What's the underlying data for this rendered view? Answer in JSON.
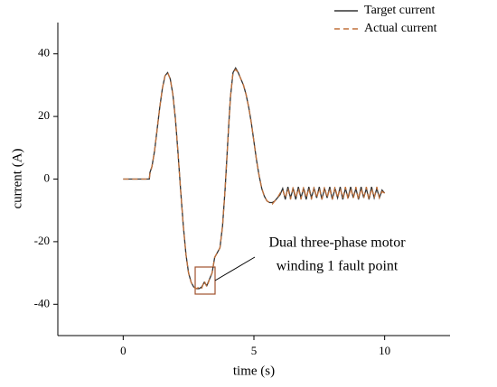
{
  "chart_data": {
    "type": "line",
    "xlabel": "time (s)",
    "ylabel": "current (A)",
    "x": [
      0,
      0.5,
      1,
      1.02,
      1.1,
      1.2,
      1.3,
      1.4,
      1.5,
      1.6,
      1.7,
      1.8,
      1.9,
      2.0,
      2.1,
      2.2,
      2.3,
      2.4,
      2.5,
      2.6,
      2.7,
      2.8,
      2.9,
      3.0,
      3.1,
      3.2,
      3.3,
      3.4,
      3.5,
      3.6,
      3.7,
      3.8,
      3.9,
      4.0,
      4.1,
      4.2,
      4.3,
      4.4,
      4.5,
      4.6,
      4.7,
      4.8,
      4.9,
      5.0,
      5.1,
      5.2,
      5.3,
      5.4,
      5.5,
      5.6,
      5.7,
      5.8,
      5.9,
      6.0,
      6.1,
      6.2,
      6.3,
      6.4,
      6.5,
      6.6,
      6.7,
      6.8,
      6.9,
      7.0,
      7.1,
      7.2,
      7.3,
      7.4,
      7.5,
      7.6,
      7.7,
      7.8,
      7.9,
      8.0,
      8.1,
      8.2,
      8.3,
      8.4,
      8.5,
      8.6,
      8.7,
      8.8,
      8.9,
      9.0,
      9.1,
      9.2,
      9.3,
      9.4,
      9.5,
      9.6,
      9.7,
      9.8,
      9.9,
      10.0
    ],
    "series": [
      {
        "name": "Target current",
        "color": "#333333",
        "linestyle": "solid",
        "values": [
          0,
          0,
          0,
          2,
          4,
          9,
          16,
          23,
          29,
          33,
          34,
          32,
          27,
          19,
          8,
          -4,
          -15,
          -24,
          -30,
          -33,
          -34.5,
          -35,
          -35,
          -34.5,
          -33,
          -34,
          -32,
          -30,
          -25,
          -23.5,
          -22,
          -15,
          -3,
          12,
          26,
          34,
          35.5,
          34,
          32,
          30,
          27,
          23,
          18,
          12,
          6,
          1,
          -3,
          -5.5,
          -7,
          -7.5,
          -7.5,
          -7,
          -6,
          -5,
          -3,
          -6.5,
          -2.5,
          -6,
          -3,
          -6.5,
          -2.5,
          -6,
          -3,
          -6.5,
          -2.5,
          -6,
          -3,
          -6,
          -2.5,
          -6.5,
          -3,
          -6,
          -2.5,
          -6.5,
          -3,
          -6,
          -2.5,
          -6.5,
          -3,
          -6,
          -2.5,
          -6,
          -3,
          -6.5,
          -2.5,
          -6,
          -3,
          -6.5,
          -2.5,
          -6,
          -3,
          -6,
          -3.5,
          -4.5
        ]
      },
      {
        "name": "Actual current",
        "color": "#c0703a",
        "linestyle": "dashed",
        "values": [
          0,
          0,
          0,
          1.5,
          4,
          9,
          16,
          23,
          29,
          33,
          34,
          32,
          27,
          19,
          8,
          -4,
          -15,
          -24,
          -30,
          -33,
          -34.5,
          -35,
          -34.5,
          -35,
          -32.5,
          -34.5,
          -32,
          -30,
          -25,
          -23.5,
          -22,
          -15,
          -3,
          12,
          26,
          34,
          35,
          34,
          32,
          30,
          27,
          23,
          18,
          12,
          6,
          1,
          -3,
          -5.5,
          -7,
          -7.5,
          -8,
          -7,
          -6,
          -4.5,
          -3.5,
          -6,
          -3,
          -6.5,
          -2.5,
          -6,
          -3,
          -6.5,
          -2.5,
          -6,
          -3,
          -6.5,
          -2.5,
          -6,
          -3,
          -6.5,
          -2.5,
          -6,
          -3,
          -6.5,
          -2.5,
          -6,
          -3,
          -6,
          -2.5,
          -6.5,
          -3,
          -6,
          -2.5,
          -6.5,
          -3,
          -6,
          -2.5,
          -6.5,
          -3,
          -6,
          -2.5,
          -6,
          -4,
          -4.5
        ]
      }
    ],
    "xlim": [
      -2.5,
      12.5
    ],
    "xticks": [
      0,
      5,
      10
    ],
    "ylim": [
      -50,
      50
    ],
    "yticks": [
      -40,
      -20,
      0,
      20,
      40
    ],
    "legend": "upper right",
    "annotation": [
      "Dual three-phase motor",
      "winding 1 fault point"
    ]
  }
}
